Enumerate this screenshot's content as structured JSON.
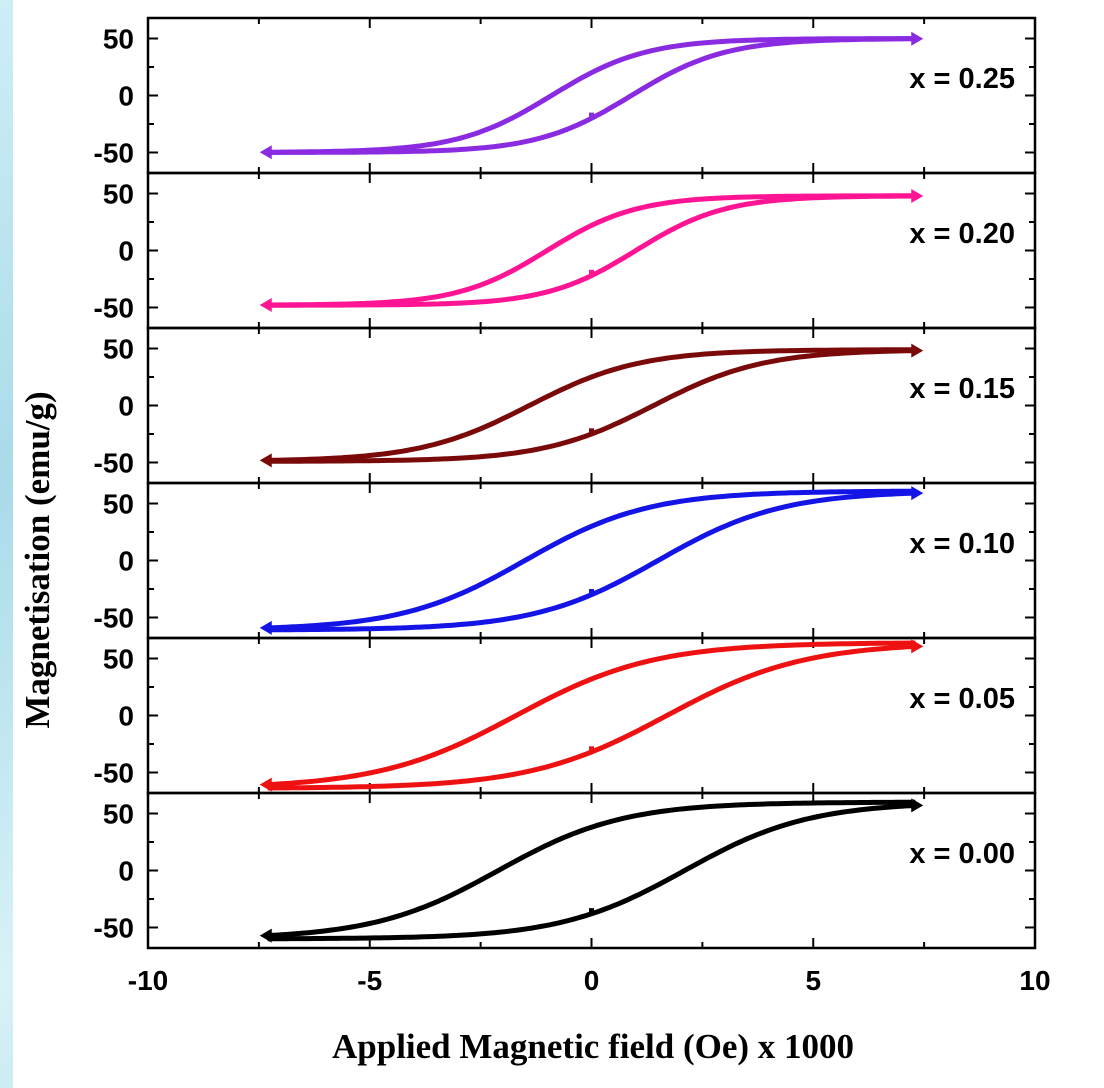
{
  "chart_data": {
    "type": "line",
    "xlabel": "Applied Magnetic field (Oe) x 1000",
    "ylabel": "Magnetisation (emu/g)",
    "xlim": [
      -10,
      10
    ],
    "ylim": [
      -68,
      68
    ],
    "x_ticks": [
      -10,
      -5,
      0,
      5,
      10
    ],
    "y_ticks": [
      50,
      0,
      -50
    ],
    "grid": false,
    "panels": [
      {
        "label": "x = 0.25",
        "color": "#8a2be2",
        "Ms": 50,
        "Hc": 0.9,
        "Mr": 20,
        "Hmax": 7.3
      },
      {
        "label": "x = 0.20",
        "color": "#ff1493",
        "Ms": 48,
        "Hc": 1.0,
        "Mr": 22,
        "Hmax": 7.3
      },
      {
        "label": "x = 0.15",
        "color": "#7a0a0a",
        "Ms": 49,
        "Hc": 1.4,
        "Mr": 25,
        "Hmax": 7.3
      },
      {
        "label": "x = 0.10",
        "color": "#1414e6",
        "Ms": 61,
        "Hc": 1.5,
        "Mr": 30,
        "Hmax": 7.3
      },
      {
        "label": "x = 0.05",
        "color": "#ee1111",
        "Ms": 64,
        "Hc": 1.7,
        "Mr": 32,
        "Hmax": 7.3
      },
      {
        "label": "x = 0.00",
        "color": "#000000",
        "Ms": 60,
        "Hc": 2.1,
        "Mr": 38,
        "Hmax": 7.3
      }
    ]
  }
}
